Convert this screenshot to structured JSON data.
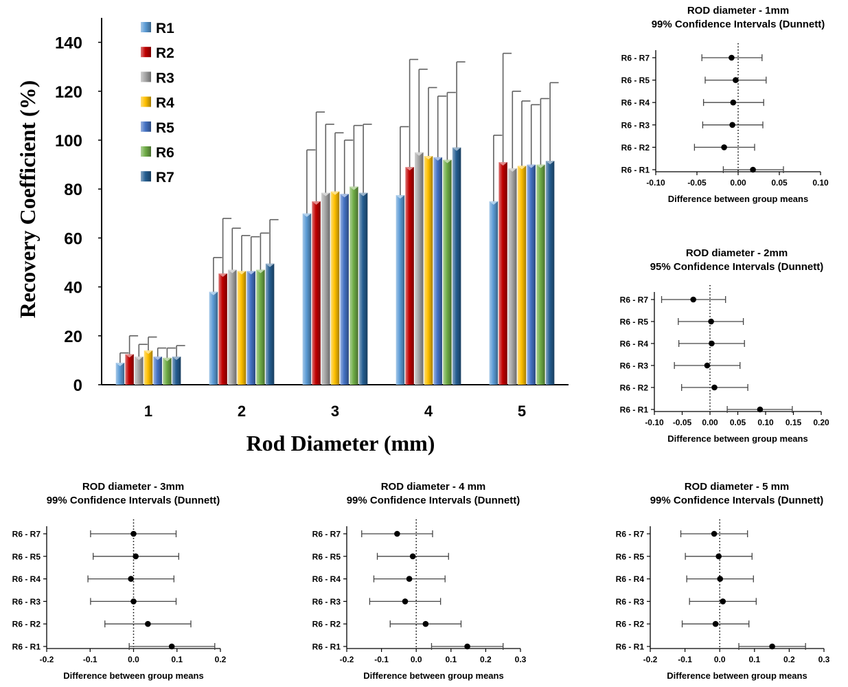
{
  "chart_data": [
    {
      "type": "bar",
      "xlabel": "Rod Diameter (mm)",
      "ylabel": "Recovery Coefficient (%)",
      "categories": [
        "1",
        "2",
        "3",
        "4",
        "5"
      ],
      "ylim": [
        0,
        150
      ],
      "yticks": [
        0,
        20,
        40,
        60,
        80,
        100,
        120,
        140
      ],
      "legend_position": "top-left",
      "grid": false,
      "series": [
        {
          "name": "R1",
          "color": "#5b9bd5",
          "values": [
            9,
            38,
            70,
            77.5,
            75
          ],
          "error": [
            4,
            14,
            26,
            28,
            27
          ]
        },
        {
          "name": "R2",
          "color": "#c00000",
          "values": [
            12.5,
            45.5,
            75,
            89,
            91
          ],
          "error": [
            7.5,
            22.5,
            36.5,
            44,
            44.5
          ]
        },
        {
          "name": "R3",
          "color": "#a5a5a5",
          "values": [
            11.5,
            47,
            78.5,
            95,
            88.5
          ],
          "error": [
            5,
            17,
            28,
            34,
            31.5
          ]
        },
        {
          "name": "R4",
          "color": "#ffc000",
          "values": [
            14,
            46.5,
            79,
            93.5,
            89.5
          ],
          "error": [
            5.5,
            14.5,
            24,
            28,
            26.5
          ]
        },
        {
          "name": "R5",
          "color": "#4472c4",
          "values": [
            11.5,
            46.5,
            78,
            93,
            90
          ],
          "error": [
            3.5,
            14,
            22,
            25,
            24.5
          ]
        },
        {
          "name": "R6",
          "color": "#70ad47",
          "values": [
            11,
            47,
            81,
            92,
            90
          ],
          "error": [
            4,
            15,
            25,
            27.5,
            27
          ]
        },
        {
          "name": "R7",
          "color": "#255e91",
          "values": [
            11.5,
            49.5,
            78.5,
            97,
            91.5
          ],
          "error": [
            4.5,
            18,
            28,
            35,
            32
          ]
        }
      ]
    },
    {
      "type": "scatter",
      "title": "ROD diameter - 1mm",
      "subtitle": "99% Confidence Intervals (Dunnett)",
      "xlabel": "Difference between group means",
      "xlim": [
        -0.1,
        0.1
      ],
      "xticks": [
        "-0.10",
        "-0.05",
        "0.00",
        "0.05",
        "0.10"
      ],
      "comparisons": [
        "R6 - R7",
        "R6 - R5",
        "R6 - R4",
        "R6 - R3",
        "R6 - R2",
        "R6 - R1"
      ],
      "mean": [
        -0.008,
        -0.003,
        -0.006,
        -0.007,
        -0.017,
        0.018
      ],
      "lower": [
        -0.044,
        -0.04,
        -0.042,
        -0.043,
        -0.053,
        -0.018
      ],
      "upper": [
        0.029,
        0.034,
        0.031,
        0.03,
        0.02,
        0.055
      ]
    },
    {
      "type": "scatter",
      "title": "ROD diameter - 2mm",
      "subtitle": "95% Confidence Intervals (Dunnett)",
      "xlabel": "Difference between group means",
      "xlim": [
        -0.1,
        0.2
      ],
      "xticks": [
        "-0.10",
        "-0.05",
        "0.00",
        "0.05",
        "0.10",
        "0.15",
        "0.20"
      ],
      "comparisons": [
        "R6 - R7",
        "R6 - R5",
        "R6 - R4",
        "R6 - R3",
        "R6 - R2",
        "R6 - R1"
      ],
      "mean": [
        -0.03,
        0.002,
        0.003,
        -0.005,
        0.008,
        0.09
      ],
      "lower": [
        -0.087,
        -0.057,
        -0.056,
        -0.064,
        -0.051,
        0.031
      ],
      "upper": [
        0.028,
        0.06,
        0.062,
        0.054,
        0.068,
        0.148
      ]
    },
    {
      "type": "scatter",
      "title": "ROD diameter - 3mm",
      "subtitle": "99% Confidence Intervals (Dunnett)",
      "xlabel": "Difference between group means",
      "xlim": [
        -0.2,
        0.2
      ],
      "xticks": [
        "-0.2",
        "-0.1",
        "0.0",
        "0.1",
        "0.2"
      ],
      "comparisons": [
        "R6 - R7",
        "R6 - R5",
        "R6 - R4",
        "R6 - R3",
        "R6 - R2",
        "R6 - R1"
      ],
      "mean": [
        0.0,
        0.005,
        -0.006,
        0.0,
        0.033,
        0.088
      ],
      "lower": [
        -0.099,
        -0.093,
        -0.105,
        -0.099,
        -0.066,
        -0.01
      ],
      "upper": [
        0.098,
        0.104,
        0.093,
        0.098,
        0.132,
        0.187
      ]
    },
    {
      "type": "scatter",
      "title": "ROD diameter - 4 mm",
      "subtitle": "99% Confidence Intervals (Dunnett)",
      "xlabel": "Difference between group means",
      "xlim": [
        -0.2,
        0.3
      ],
      "xticks": [
        "-0.2",
        "-0.1",
        "0.0",
        "0.1",
        "0.2",
        "0.3"
      ],
      "comparisons": [
        "R6 - R7",
        "R6 - R5",
        "R6 - R4",
        "R6 - R3",
        "R6 - R2",
        "R6 - R1"
      ],
      "mean": [
        -0.055,
        -0.01,
        -0.02,
        -0.032,
        0.027,
        0.147
      ],
      "lower": [
        -0.157,
        -0.112,
        -0.122,
        -0.134,
        -0.075,
        0.044
      ],
      "upper": [
        0.047,
        0.093,
        0.083,
        0.07,
        0.129,
        0.25
      ]
    },
    {
      "type": "scatter",
      "title": "ROD diameter - 5 mm",
      "subtitle": "99% Confidence Intervals (Dunnett)",
      "xlabel": "Difference between group means",
      "xlim": [
        -0.2,
        0.3
      ],
      "xticks": [
        "-0.2",
        "-0.1",
        "0.0",
        "0.1",
        "0.2",
        "0.3"
      ],
      "comparisons": [
        "R6 - R7",
        "R6 - R5",
        "R6 - R4",
        "R6 - R3",
        "R6 - R2",
        "R6 - R1"
      ],
      "mean": [
        -0.016,
        -0.003,
        0.001,
        0.009,
        -0.012,
        0.151
      ],
      "lower": [
        -0.112,
        -0.099,
        -0.095,
        -0.087,
        -0.108,
        0.055
      ],
      "upper": [
        0.08,
        0.093,
        0.097,
        0.105,
        0.084,
        0.247
      ]
    }
  ]
}
